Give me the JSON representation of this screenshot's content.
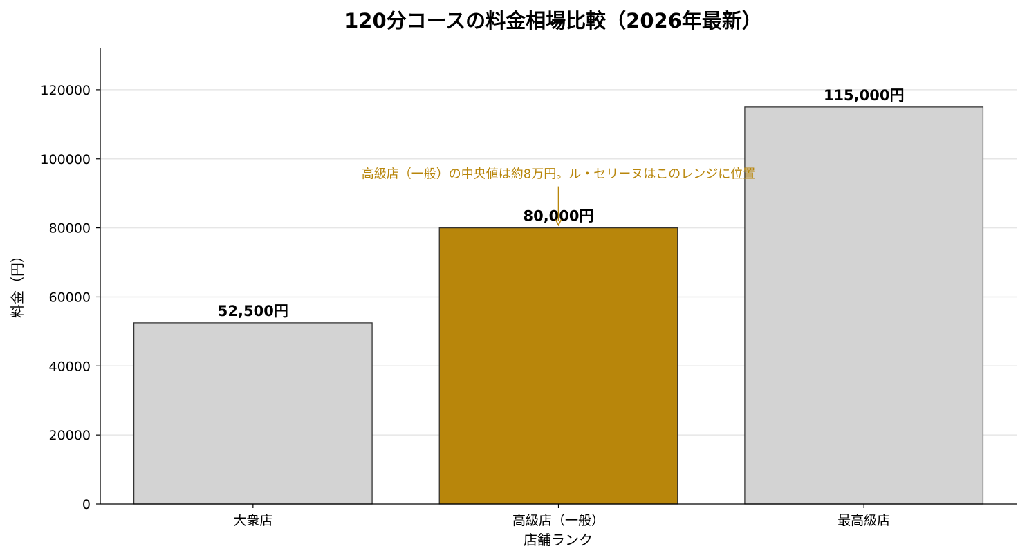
{
  "chart_data": {
    "type": "bar",
    "title": "120分コースの料金相場比較（2026年最新）",
    "xlabel": "店舗ランク",
    "ylabel": "料金（円）",
    "categories": [
      "大衆店",
      "高級店（一般）",
      "最高級店"
    ],
    "values": [
      52500,
      80000,
      115000
    ],
    "data_labels": [
      "52,500円",
      "80,000円",
      "115,000円"
    ],
    "ylim": [
      0,
      132000
    ],
    "yticks": [
      0,
      20000,
      40000,
      60000,
      80000,
      100000,
      120000
    ],
    "ytick_labels": [
      "0",
      "20000",
      "40000",
      "60000",
      "80000",
      "100000",
      "120000"
    ],
    "grid": "horizontal",
    "highlight_index": 1,
    "colors": {
      "default_bar": "#d3d3d3",
      "highlight_bar": "#b8860b",
      "bar_edge": "#333333",
      "annotation": "#b8860b",
      "grid": "#e6e6e6"
    },
    "annotation": {
      "text": "高級店（一般）の中央値は約8万円。ル・セリーヌはこのレンジに位置",
      "target_index": 1
    }
  }
}
